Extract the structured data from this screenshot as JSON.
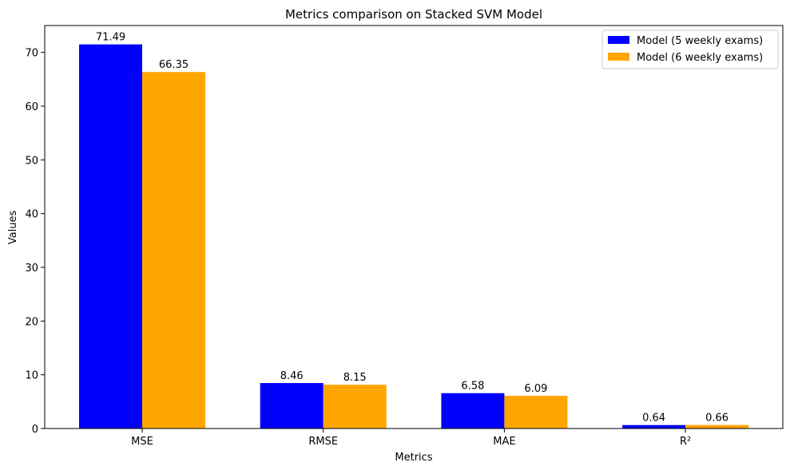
{
  "chart_data": {
    "type": "bar",
    "title": "Metrics comparison on Stacked SVM Model",
    "xlabel": "Metrics",
    "ylabel": "Values",
    "categories": [
      "MSE",
      "RMSE",
      "MAE",
      "R²"
    ],
    "series": [
      {
        "name": "Model (5 weekly exams)",
        "values": [
          71.49,
          8.46,
          6.58,
          0.64
        ],
        "labels": [
          "71.49",
          "8.46",
          "6.58",
          "0.64"
        ],
        "color": "#0000ff"
      },
      {
        "name": "Model (6 weekly exams)",
        "values": [
          66.35,
          8.15,
          6.09,
          0.66
        ],
        "labels": [
          "66.35",
          "8.15",
          "6.09",
          "0.66"
        ],
        "color": "#ffa500"
      }
    ],
    "ylim": [
      0,
      75
    ],
    "yticks": [
      0,
      10,
      20,
      30,
      40,
      50,
      60,
      70
    ],
    "ytick_labels": [
      "0",
      "10",
      "20",
      "30",
      "40",
      "50",
      "60",
      "70"
    ],
    "grid": false,
    "legend_position": "top-right"
  }
}
